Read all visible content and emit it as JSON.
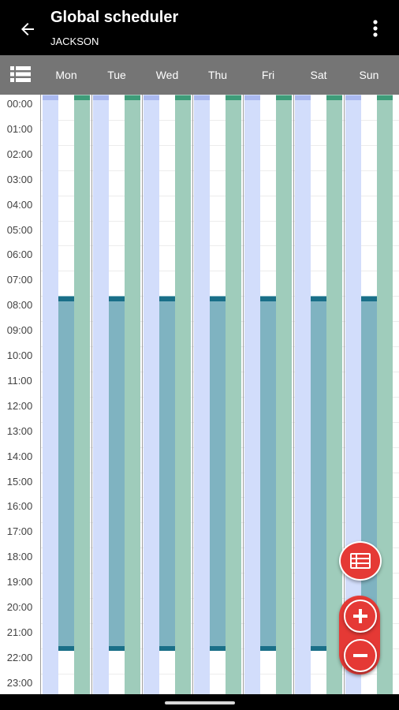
{
  "appbar": {
    "title": "Global scheduler",
    "subtitle": "JACKSON",
    "back_icon": "arrow-left-icon",
    "menu_icon": "more-vertical-icon"
  },
  "days": [
    "Mon",
    "Tue",
    "Wed",
    "Thu",
    "Fri",
    "Sat",
    "Sun"
  ],
  "hours": [
    "00:00",
    "01:00",
    "02:00",
    "03:00",
    "04:00",
    "05:00",
    "06:00",
    "07:00",
    "08:00",
    "09:00",
    "10:00",
    "11:00",
    "12:00",
    "13:00",
    "14:00",
    "15:00",
    "16:00",
    "17:00",
    "18:00",
    "19:00",
    "20:00",
    "21:00",
    "22:00",
    "23:00"
  ],
  "schedule": {
    "blue_period": {
      "from": "00:00",
      "to": "24:00"
    },
    "teal_period": {
      "from": "08:00",
      "to": "22:00"
    },
    "green_period": {
      "from": "00:00",
      "to": "24:00"
    }
  },
  "colors": {
    "appbar": "#000000",
    "header": "#757575",
    "blue": "#d2ddfb",
    "blue_cap": "#aab9f0",
    "teal": "#7fb3c1",
    "teal_cap": "#1a6f88",
    "green": "#9fccbb",
    "green_cap": "#3e9c79",
    "fab": "#e53935"
  },
  "fabs": {
    "list_icon": "list-icon",
    "zoom_in_icon": "plus-icon",
    "zoom_out_icon": "minus-icon"
  }
}
